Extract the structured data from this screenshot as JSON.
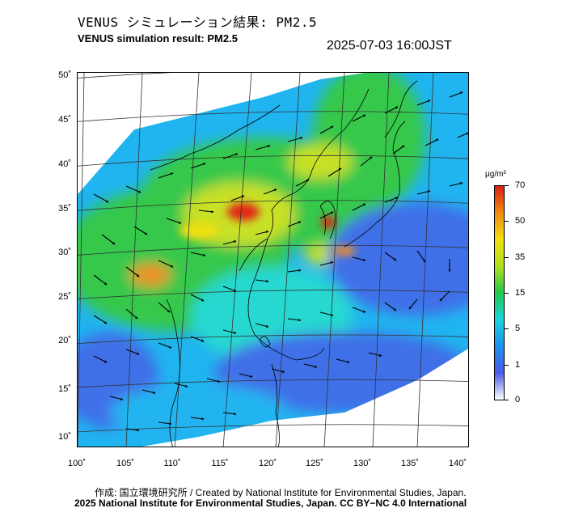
{
  "header": {
    "title_ja": "VENUS シミュレーション結果: PM2.5",
    "title_en": "VENUS simulation result: PM2.5",
    "timestamp": "2025-07-03 16:00JST"
  },
  "axes": {
    "latitudes": [
      "50˚",
      "45˚",
      "40˚",
      "35˚",
      "30˚",
      "25˚",
      "20˚",
      "15˚",
      "10˚"
    ],
    "longitudes": [
      "100˚",
      "105˚",
      "110˚",
      "115˚",
      "120˚",
      "125˚",
      "130˚",
      "135˚",
      "140˚"
    ]
  },
  "colorbar": {
    "unit": "μg/m³",
    "ticks": [
      "70",
      "50",
      "35",
      "15",
      "5",
      "1",
      "0"
    ],
    "colors": [
      "#ffffff",
      "#4a5be8",
      "#1f8ff0",
      "#18d6e0",
      "#22c84a",
      "#aee01c",
      "#f0e010",
      "#f08a10",
      "#d82010"
    ]
  },
  "map": {
    "colors": {
      "low": "#3f6fe8",
      "mid_low": "#20b4f0",
      "cyan": "#28d8d0",
      "green": "#34c84c",
      "yellow": "#c8e028",
      "orange": "#f09020",
      "red": "#e02818"
    }
  },
  "footer": {
    "credit_line": "作成: 国立環境研究所 / Created by National Institute for Environmental Studies, Japan.",
    "license_line": "2025 National Institute for Environmental Studies, Japan. CC BY−NC 4.0 International"
  }
}
